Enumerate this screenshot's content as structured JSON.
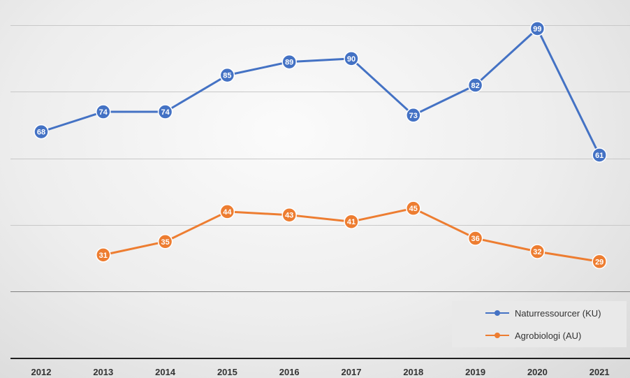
{
  "chart_data": {
    "type": "line",
    "title": "",
    "xlabel": "",
    "ylabel": "",
    "categories": [
      "2012",
      "2013",
      "2014",
      "2015",
      "2016",
      "2017",
      "2018",
      "2019",
      "2020",
      "2021"
    ],
    "ylim": [
      0,
      105
    ],
    "grid": true,
    "legend": "bottom-right",
    "series": [
      {
        "name": "Naturressourcer (KU)",
        "color": "#4472c4",
        "values": [
          68,
          74,
          74,
          85,
          89,
          90,
          73,
          82,
          99,
          61
        ]
      },
      {
        "name": "Agrobiologi (AU)",
        "color": "#ed7d31",
        "values": [
          null,
          31,
          35,
          44,
          43,
          41,
          45,
          36,
          32,
          29
        ]
      }
    ]
  }
}
